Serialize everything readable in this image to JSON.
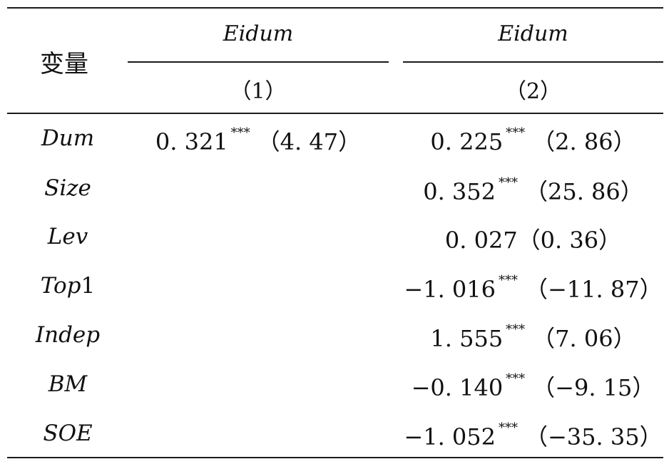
{
  "table": {
    "var_header": "变量",
    "columns": [
      {
        "dep_var": "Eidum",
        "number": "（1）"
      },
      {
        "dep_var": "Eidum",
        "number": "（2）"
      }
    ],
    "rows": [
      {
        "label_italic": "Dum",
        "label_upright": "",
        "col1": {
          "coef": "0. 321",
          "stars": "***",
          "t": "（4. 47）"
        },
        "col2": {
          "coef": "0. 225",
          "stars": "***",
          "t": "（2. 86）"
        }
      },
      {
        "label_italic": "Size",
        "label_upright": "",
        "col1": {
          "coef": "",
          "stars": "",
          "t": ""
        },
        "col2": {
          "coef": "0. 352",
          "stars": "***",
          "t": "（25. 86）"
        }
      },
      {
        "label_italic": "Lev",
        "label_upright": "",
        "col1": {
          "coef": "",
          "stars": "",
          "t": ""
        },
        "col2": {
          "coef": "0. 027",
          "stars": "",
          "t": "（0. 36）"
        }
      },
      {
        "label_italic": "Top",
        "label_upright": "1",
        "col1": {
          "coef": "",
          "stars": "",
          "t": ""
        },
        "col2": {
          "coef": "−1. 016",
          "stars": "***",
          "t": "（−11. 87）"
        }
      },
      {
        "label_italic": "Indep",
        "label_upright": "",
        "col1": {
          "coef": "",
          "stars": "",
          "t": ""
        },
        "col2": {
          "coef": "1. 555",
          "stars": "***",
          "t": "（7. 06）"
        }
      },
      {
        "label_italic": "BM",
        "label_upright": "",
        "col1": {
          "coef": "",
          "stars": "",
          "t": ""
        },
        "col2": {
          "coef": "−0. 140",
          "stars": "***",
          "t": "（−9. 15）"
        }
      },
      {
        "label_italic": "SOE",
        "label_upright": "",
        "col1": {
          "coef": "",
          "stars": "",
          "t": ""
        },
        "col2": {
          "coef": "−1. 052",
          "stars": "***",
          "t": "（−35. 35）"
        }
      }
    ]
  }
}
